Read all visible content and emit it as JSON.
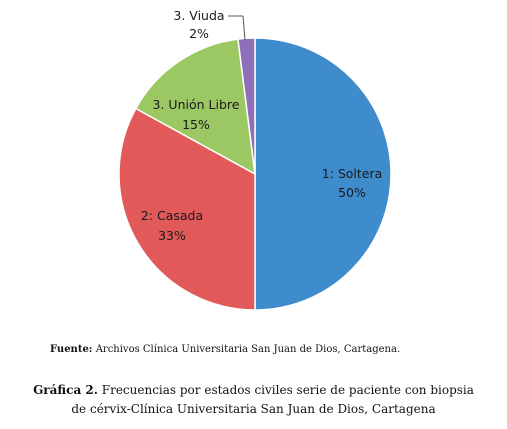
{
  "chart_data": {
    "type": "pie",
    "title": "",
    "slices": [
      {
        "label": "1: Soltera",
        "pct_label": "50%",
        "value": 50,
        "color": "#3f8ccd"
      },
      {
        "label": "2: Casada",
        "pct_label": "33%",
        "value": 33,
        "color": "#e15959"
      },
      {
        "label": "3. Unión Libre",
        "pct_label": "15%",
        "value": 15,
        "color": "#9cc864"
      },
      {
        "label": "3. Viuda",
        "pct_label": "2%",
        "value": 2,
        "color": "#8f6fb7"
      }
    ],
    "legend": "none"
  },
  "source": {
    "label": "Fuente:",
    "text": "Archivos Clínica Universitaria San Juan de Dios, Cartagena."
  },
  "caption": {
    "label": "Gráfica 2.",
    "line1": "Frecuencias por estados civiles serie de paciente con biopsia",
    "line2": "de cérvix-Clínica Universitaria San Juan de Dios, Cartagena"
  }
}
